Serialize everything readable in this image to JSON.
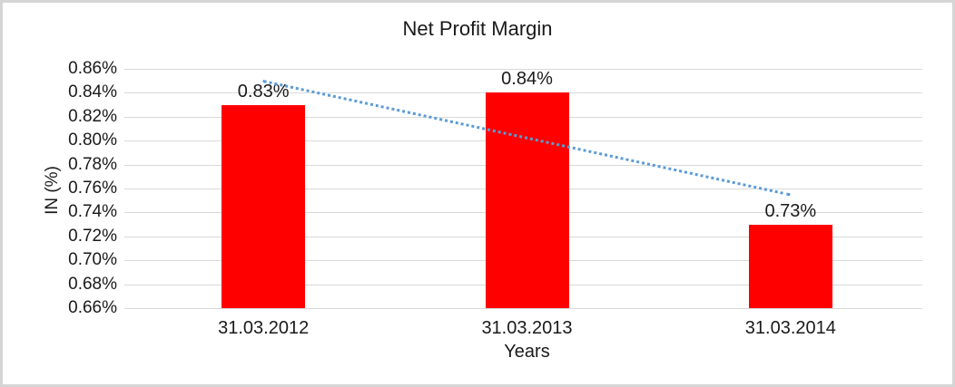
{
  "frame": {
    "background": "#FFFFFF",
    "border_color": "#D5D5D5"
  },
  "chart_data": {
    "type": "bar",
    "title": "Net Profit Margin",
    "xlabel": "Years",
    "ylabel": "IN (%)",
    "categories": [
      "31.03.2012",
      "31.03.2013",
      "31.03.2014"
    ],
    "values": [
      0.83,
      0.84,
      0.73
    ],
    "data_labels": [
      "0.83%",
      "0.84%",
      "0.73%"
    ],
    "ylim": [
      0.66,
      0.86
    ],
    "ytick_step": 0.02,
    "ytick_labels": [
      "0.86%",
      "0.84%",
      "0.82%",
      "0.80%",
      "0.78%",
      "0.76%",
      "0.74%",
      "0.72%",
      "0.70%",
      "0.68%",
      "0.66%"
    ],
    "grid": true,
    "legend": "none",
    "bar_color": "#FF0000",
    "gridline_color": "#D9D9D9",
    "text_color": "#1A1A1A",
    "trendline": {
      "type": "linear",
      "style": "dotted",
      "color": "#5B9BD5",
      "start_value": 0.85,
      "end_value": 0.755
    }
  }
}
